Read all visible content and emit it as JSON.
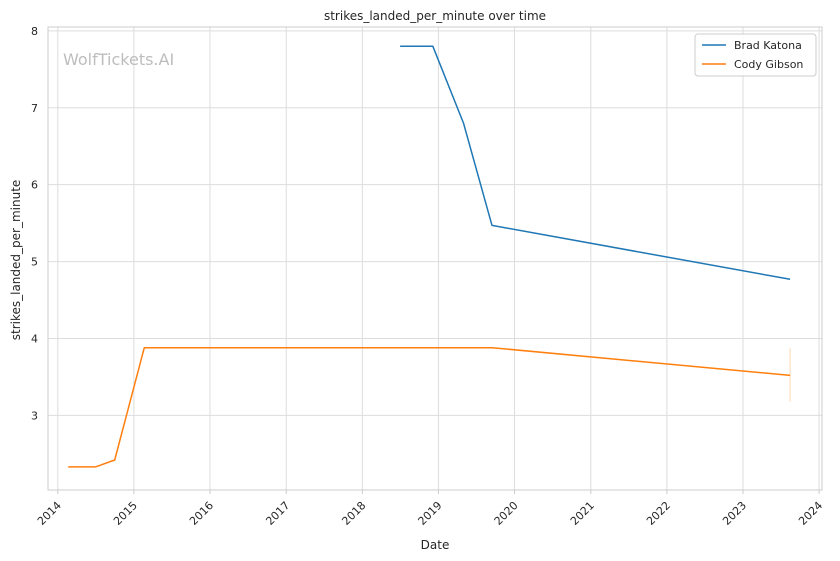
{
  "chart_data": {
    "type": "line",
    "title": "strikes_landed_per_minute over time",
    "xlabel": "Date",
    "ylabel": "strikes_landed_per_minute",
    "x_ticks": [
      "2014",
      "2015",
      "2016",
      "2017",
      "2018",
      "2019",
      "2020",
      "2021",
      "2022",
      "2023",
      "2024"
    ],
    "y_ticks": [
      "3",
      "4",
      "5",
      "6",
      "7",
      "8"
    ],
    "xlim": [
      "2013-11-15",
      "2024-01-15"
    ],
    "ylim": [
      2.03,
      8.05
    ],
    "grid": true,
    "legend_position": "top-right",
    "watermark": "WolfTickets.AI",
    "series": [
      {
        "name": "Brad Katona",
        "color": "#1f77b4",
        "points": [
          {
            "x": "2018-07-01",
            "y": 7.8
          },
          {
            "x": "2018-12-05",
            "y": 7.8
          },
          {
            "x": "2019-05-01",
            "y": 6.8
          },
          {
            "x": "2019-09-15",
            "y": 5.47
          },
          {
            "x": "2023-08-15",
            "y": 4.77
          }
        ]
      },
      {
        "name": "Cody Gibson",
        "color": "#ff7f0e",
        "points": [
          {
            "x": "2014-02-20",
            "y": 2.33
          },
          {
            "x": "2014-07-01",
            "y": 2.33
          },
          {
            "x": "2014-10-01",
            "y": 2.42
          },
          {
            "x": "2015-02-20",
            "y": 3.88
          },
          {
            "x": "2019-09-15",
            "y": 3.88
          },
          {
            "x": "2023-08-15",
            "y": 3.52
          }
        ],
        "error_band": {
          "x": "2023-08-15",
          "low": 3.18,
          "high": 3.88
        }
      }
    ]
  }
}
